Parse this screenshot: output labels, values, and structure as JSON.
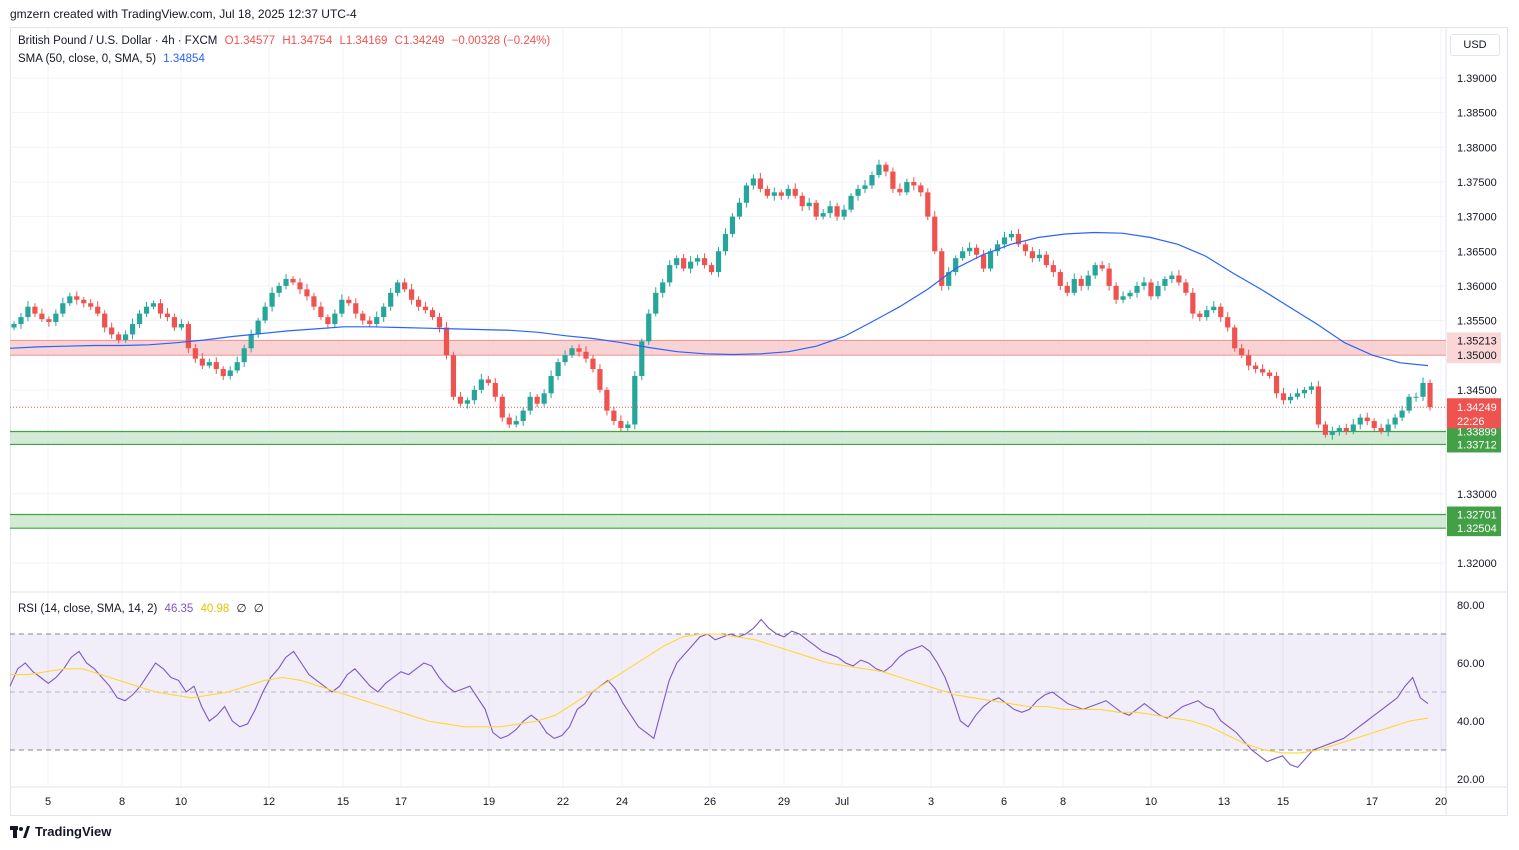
{
  "header": {
    "credit": "gmzern created with TradingView.com, Jul 18, 2025 12:37 UTC-4"
  },
  "legend": {
    "symbol": "British Pound / U.S. Dollar · 4h · FXCM",
    "open_label": "O",
    "open": "1.34577",
    "high_label": "H",
    "high": "1.34754",
    "low_label": "L",
    "low": "1.34169",
    "close_label": "C",
    "close": "1.34249",
    "change": "−0.00328 (−0.24%)",
    "sma_label": "SMA (50, close, 0, SMA, 5)",
    "sma_value": "1.34854",
    "rsi_label": "RSI (14, close, SMA, 14, 2)",
    "rsi_value": "46.35",
    "rsi_sma_value": "40.98",
    "rsi_extra1": "∅",
    "rsi_extra2": "∅"
  },
  "currency_button": "USD",
  "footer": {
    "brand": "TradingView"
  },
  "colors": {
    "up": "#26a69a",
    "down": "#ef5350",
    "sma": "#2962ff",
    "rsi": "#7e57c2",
    "rsi_sma": "#fdd835",
    "resistance_fill": "#f7c4c6",
    "support_fill": "#c8e6c9",
    "support_line": "#43a047"
  },
  "chart_data": [
    {
      "type": "candlestick",
      "title": "British Pound / U.S. Dollar · 4h · FXCM",
      "x_ticks": [
        "5",
        "8",
        "10",
        "12",
        "15",
        "17",
        "19",
        "22",
        "24",
        "26",
        "29",
        "Jul",
        "3",
        "6",
        "8",
        "10",
        "13",
        "15",
        "17",
        "20"
      ],
      "y_ticks": [
        "1.39000",
        "1.38500",
        "1.38000",
        "1.37500",
        "1.37000",
        "1.36500",
        "1.36000",
        "1.35500",
        "1.34500",
        "1.33000",
        "1.32000"
      ],
      "ylim": [
        1.3175,
        1.3925
      ],
      "last_price": 1.34249,
      "countdown": "22:26",
      "horizontal_zones": [
        {
          "kind": "resistance",
          "from": 1.35,
          "to": 1.35213,
          "labels": [
            "1.35213",
            "1.35000"
          ]
        },
        {
          "kind": "support",
          "from": 1.33712,
          "to": 1.33899,
          "labels": [
            "1.33899",
            "1.33712"
          ]
        },
        {
          "kind": "support",
          "from": 1.32504,
          "to": 1.32701,
          "labels": [
            "1.32701",
            "1.32504"
          ]
        }
      ],
      "close_series": [
        1.3545,
        1.3555,
        1.357,
        1.356,
        1.3552,
        1.3548,
        1.356,
        1.3575,
        1.3585,
        1.358,
        1.3575,
        1.357,
        1.356,
        1.354,
        1.353,
        1.3522,
        1.353,
        1.3545,
        1.356,
        1.357,
        1.3575,
        1.356,
        1.3555,
        1.354,
        1.3545,
        1.351,
        1.3495,
        1.3485,
        1.349,
        1.348,
        1.347,
        1.3478,
        1.349,
        1.351,
        1.353,
        1.355,
        1.357,
        1.359,
        1.36,
        1.361,
        1.3605,
        1.3595,
        1.3585,
        1.357,
        1.3555,
        1.3545,
        1.356,
        1.358,
        1.3575,
        1.356,
        1.355,
        1.3545,
        1.3555,
        1.357,
        1.359,
        1.3605,
        1.3595,
        1.358,
        1.357,
        1.3565,
        1.3555,
        1.354,
        1.35,
        1.344,
        1.343,
        1.3435,
        1.345,
        1.3465,
        1.346,
        1.344,
        1.341,
        1.34,
        1.3405,
        1.342,
        1.344,
        1.343,
        1.3445,
        1.347,
        1.349,
        1.35,
        1.351,
        1.3505,
        1.3495,
        1.348,
        1.345,
        1.342,
        1.3405,
        1.3395,
        1.34,
        1.347,
        1.352,
        1.356,
        1.359,
        1.3605,
        1.363,
        1.364,
        1.3625,
        1.3635,
        1.364,
        1.363,
        1.362,
        1.365,
        1.3675,
        1.37,
        1.372,
        1.3745,
        1.3755,
        1.374,
        1.373,
        1.3735,
        1.373,
        1.374,
        1.373,
        1.3715,
        1.372,
        1.37,
        1.3705,
        1.3715,
        1.37,
        1.371,
        1.373,
        1.374,
        1.3745,
        1.376,
        1.3775,
        1.3765,
        1.374,
        1.3735,
        1.375,
        1.3745,
        1.3735,
        1.37,
        1.365,
        1.36,
        1.362,
        1.364,
        1.365,
        1.3655,
        1.3645,
        1.3625,
        1.365,
        1.366,
        1.367,
        1.3675,
        1.366,
        1.365,
        1.364,
        1.3645,
        1.363,
        1.362,
        1.36,
        1.359,
        1.361,
        1.36,
        1.3615,
        1.363,
        1.3625,
        1.36,
        1.358,
        1.3585,
        1.359,
        1.36,
        1.3605,
        1.3585,
        1.36,
        1.361,
        1.3615,
        1.3605,
        1.359,
        1.356,
        1.3555,
        1.3565,
        1.357,
        1.3555,
        1.354,
        1.351,
        1.35,
        1.3485,
        1.348,
        1.3475,
        1.347,
        1.3445,
        1.3435,
        1.344,
        1.3445,
        1.345,
        1.3455,
        1.34,
        1.3385,
        1.339,
        1.3395,
        1.339,
        1.34,
        1.341,
        1.3405,
        1.3395,
        1.339,
        1.34,
        1.341,
        1.342,
        1.344,
        1.344,
        1.346,
        1.3425
      ],
      "sma_series": [
        1.351,
        1.3512,
        1.3513,
        1.3514,
        1.3514,
        1.3515,
        1.3518,
        1.3522,
        1.3527,
        1.3531,
        1.3535,
        1.3538,
        1.3541,
        1.3541,
        1.354,
        1.3539,
        1.3538,
        1.3537,
        1.3536,
        1.3533,
        1.3528,
        1.3524,
        1.3518,
        1.3511,
        1.3505,
        1.3502,
        1.3501,
        1.3502,
        1.3505,
        1.3513,
        1.3527,
        1.3548,
        1.357,
        1.3595,
        1.3625,
        1.3645,
        1.366,
        1.367,
        1.3675,
        1.3677,
        1.3676,
        1.367,
        1.366,
        1.3643,
        1.3618,
        1.3595,
        1.357,
        1.3545,
        1.3518,
        1.35,
        1.3489,
        1.3485
      ],
      "series": [
        {
          "name": "SMA (50, close, 0, SMA, 5)",
          "last": 1.34854
        }
      ]
    },
    {
      "type": "line",
      "title": "RSI (14, close, SMA, 14, 2)",
      "y_ticks": [
        "80.00",
        "60.00",
        "40.00",
        "20.00"
      ],
      "ylim": [
        18,
        82
      ],
      "bands": {
        "upper": 70,
        "middle": 50,
        "lower": 30
      },
      "series": [
        {
          "name": "RSI",
          "last": 46.35,
          "values": [
            52,
            58,
            60,
            57,
            55,
            53,
            55,
            58,
            62,
            64,
            60,
            58,
            55,
            52,
            48,
            47,
            49,
            52,
            56,
            60,
            58,
            55,
            54,
            50,
            52,
            45,
            40,
            42,
            45,
            40,
            38,
            39,
            44,
            50,
            55,
            58,
            62,
            64,
            60,
            56,
            54,
            52,
            50,
            52,
            56,
            58,
            55,
            52,
            50,
            53,
            55,
            57,
            56,
            58,
            60,
            59,
            55,
            52,
            50,
            51,
            52,
            48,
            44,
            36,
            34,
            35,
            37,
            40,
            42,
            40,
            36,
            34,
            35,
            38,
            44,
            46,
            50,
            52,
            54,
            51,
            46,
            42,
            38,
            36,
            34,
            44,
            54,
            60,
            63,
            66,
            69,
            70,
            68,
            69,
            70,
            69,
            70,
            72,
            75,
            72,
            70,
            69,
            71,
            70,
            68,
            66,
            64,
            63,
            62,
            60,
            59,
            61,
            60,
            58,
            57,
            59,
            62,
            64,
            65,
            66,
            64,
            60,
            55,
            48,
            40,
            38,
            42,
            45,
            47,
            48,
            46,
            44,
            43,
            44,
            47,
            49,
            50,
            48,
            46,
            45,
            44,
            45,
            46,
            47,
            45,
            43,
            42,
            44,
            46,
            44,
            42,
            41,
            43,
            45,
            46,
            47,
            45,
            44,
            40,
            38,
            36,
            33,
            30,
            28,
            26,
            27,
            28,
            25,
            24,
            27,
            30,
            31,
            32,
            33,
            34,
            36,
            38,
            40,
            42,
            44,
            46,
            48,
            52,
            55,
            48,
            46
          ]
        },
        {
          "name": "RSI SMA",
          "last": 40.98,
          "values": [
            56,
            56,
            57,
            58,
            58,
            56,
            54,
            52,
            50,
            49,
            48,
            49,
            50,
            52,
            54,
            55,
            54,
            52,
            50,
            48,
            46,
            44,
            42,
            40,
            39,
            38,
            38,
            38,
            39,
            40,
            42,
            46,
            50,
            54,
            58,
            62,
            66,
            69,
            70,
            70,
            69,
            68,
            66,
            64,
            62,
            60,
            59,
            58,
            57,
            55,
            53,
            51,
            49,
            48,
            47,
            46,
            45,
            45,
            44,
            44,
            44,
            43,
            43,
            42,
            41,
            40,
            38,
            35,
            32,
            30,
            29,
            29,
            30,
            32,
            34,
            36,
            38,
            40,
            41
          ]
        }
      ]
    }
  ]
}
